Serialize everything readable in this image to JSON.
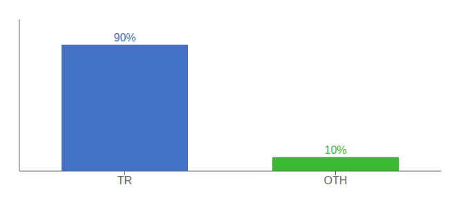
{
  "chart_data": {
    "type": "bar",
    "categories": [
      "TR",
      "OTH"
    ],
    "values": [
      90,
      10
    ],
    "colors": [
      "#4472c4",
      "#3cb832"
    ],
    "value_labels": [
      "90%",
      "10%"
    ],
    "data_labels": true,
    "ylim": [
      0,
      108
    ],
    "yticks": [],
    "tick_labels": "x",
    "grid": false
  }
}
